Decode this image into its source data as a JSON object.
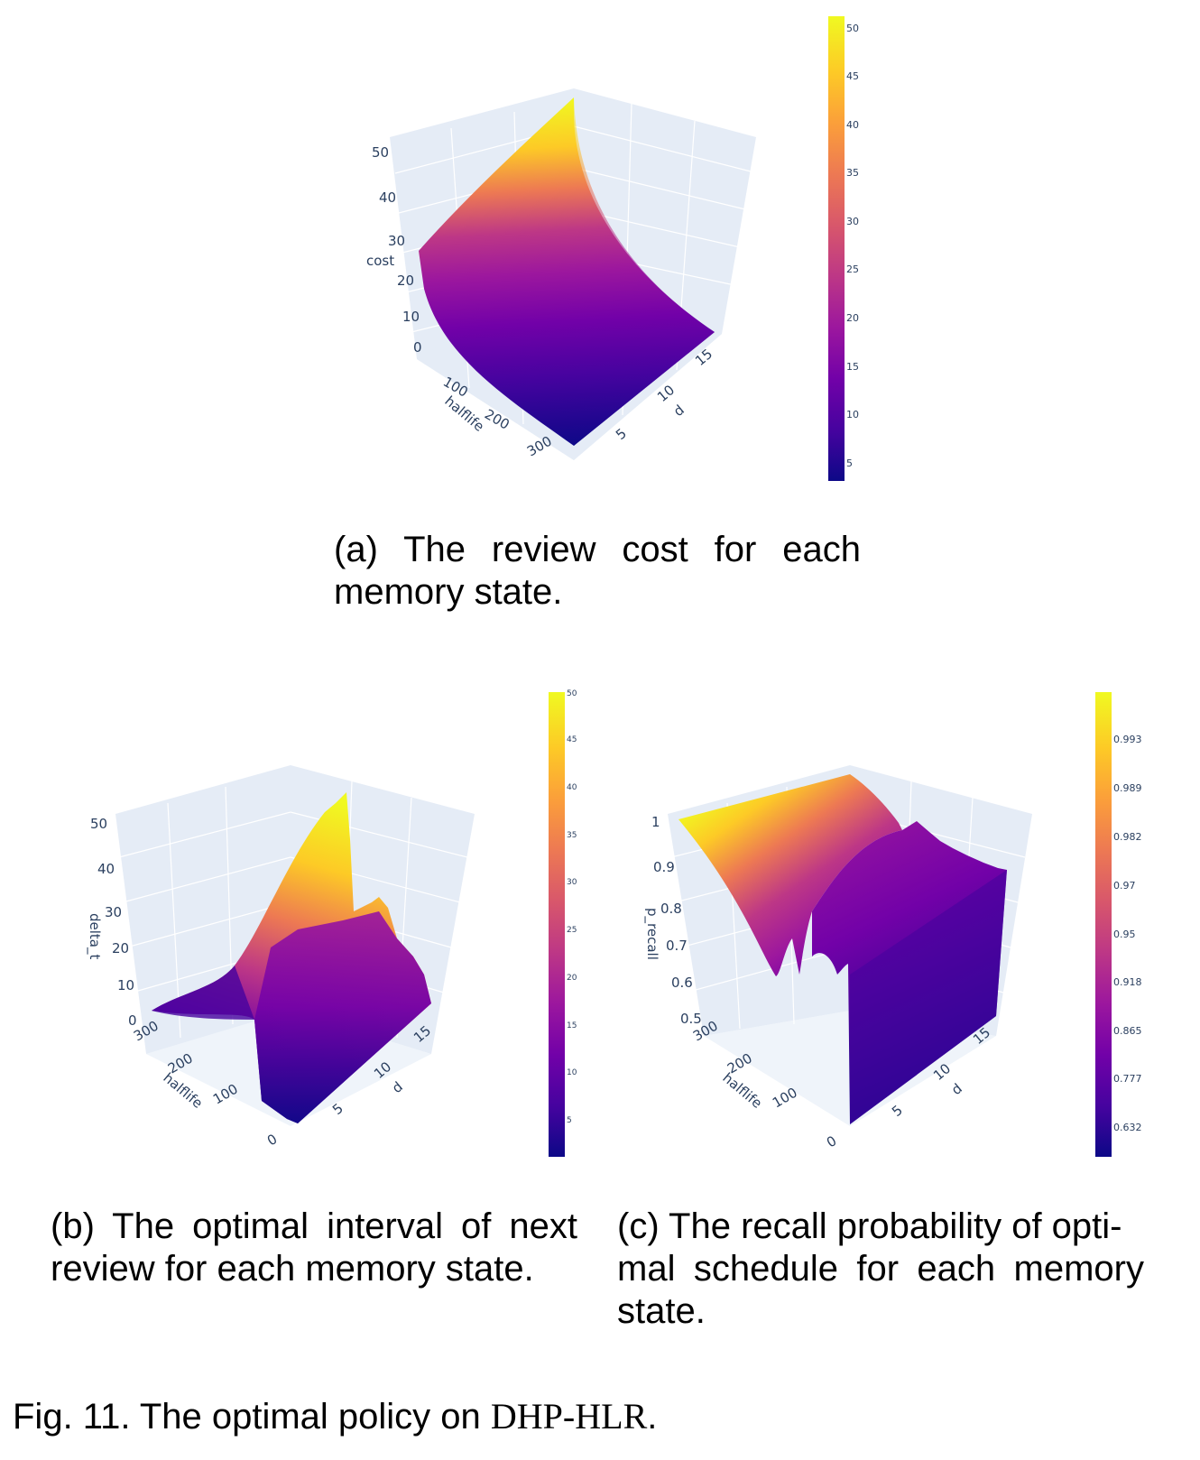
{
  "chart_data": [
    {
      "id": "a",
      "type": "surface3d",
      "caption": "(a) The review cost for each memory state.",
      "zlabel": "cost",
      "xlabel": "halflife",
      "ylabel": "d",
      "z_ticks": [
        "0",
        "10",
        "20",
        "30",
        "40",
        "50"
      ],
      "x_ticks": [
        "100",
        "200",
        "300"
      ],
      "y_ticks": [
        "5",
        "10",
        "15"
      ],
      "colorbar_ticks": [
        "5",
        "10",
        "15",
        "20",
        "25",
        "30",
        "35",
        "40",
        "45",
        "50"
      ],
      "colorbar_range": [
        3,
        51
      ],
      "colorscale": "plasma"
    },
    {
      "id": "b",
      "type": "surface3d",
      "caption": "(b) The optimal interval of next review for each memory state.",
      "zlabel": "delta_t",
      "xlabel": "halflife",
      "ylabel": "d",
      "z_ticks": [
        "0",
        "10",
        "20",
        "30",
        "40",
        "50"
      ],
      "x_ticks": [
        "0",
        "100",
        "200",
        "300"
      ],
      "y_ticks": [
        "5",
        "10",
        "15"
      ],
      "colorbar_ticks": [
        "5",
        "10",
        "15",
        "20",
        "25",
        "30",
        "35",
        "40",
        "45",
        "50"
      ],
      "colorbar_range": [
        1,
        50
      ],
      "colorscale": "plasma"
    },
    {
      "id": "c",
      "type": "surface3d",
      "caption": "(c) The recall probability of optimal schedule for each memory state.",
      "zlabel": "p_recall",
      "xlabel": "halflife",
      "ylabel": "d",
      "z_ticks": [
        "0.5",
        "0.6",
        "0.7",
        "0.8",
        "0.9",
        "1"
      ],
      "x_ticks": [
        "0",
        "100",
        "200",
        "300"
      ],
      "y_ticks": [
        "5",
        "10",
        "15"
      ],
      "colorbar_ticks": [
        "0.632",
        "0.777",
        "0.865",
        "0.918",
        "0.95",
        "0.97",
        "0.982",
        "0.989",
        "0.993"
      ],
      "colorscale": "plasma"
    }
  ],
  "captions": {
    "a": "(a) The review cost for each memory state.",
    "b": "(b) The optimal interval of next review for each memory state.",
    "c_part1": "(c) The recall probability of opti-",
    "c_part2": "mal schedule for each memory state."
  },
  "figure_caption": {
    "prefix": "Fig. 11. The optimal policy on ",
    "method": "DHP-HLR",
    "suffix": "."
  },
  "colors": {
    "plasma": [
      "#0d0887",
      "#46039f",
      "#7201a8",
      "#9c179e",
      "#bd3786",
      "#d8576b",
      "#ed7953",
      "#fb9f3a",
      "#fdca26",
      "#f0f921"
    ],
    "scene_bg": "#e5ecf6",
    "grid": "#ffffff",
    "tick_text": "#2a3f5f"
  }
}
